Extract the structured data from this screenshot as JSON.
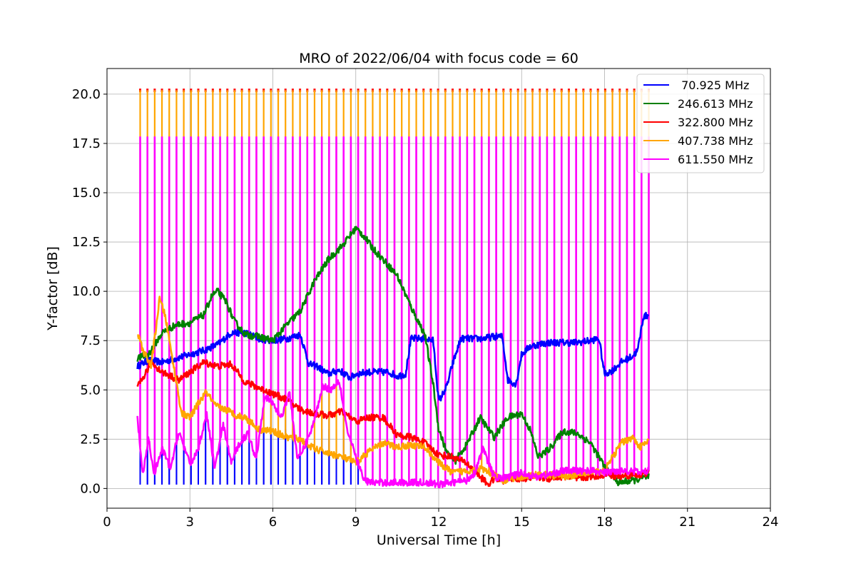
{
  "chart_data": {
    "type": "line",
    "title": "MRO of 2022/06/04 with focus code = 60",
    "xlabel": "Universal Time [h]",
    "ylabel": "Y-factor [dB]",
    "xlim": [
      0,
      24
    ],
    "ylim": [
      -1.0,
      21.3
    ],
    "xticks": [
      0,
      3,
      6,
      9,
      12,
      15,
      18,
      21,
      24
    ],
    "yticks": [
      0.0,
      2.5,
      5.0,
      7.5,
      10.0,
      12.5,
      15.0,
      17.5,
      20.0
    ],
    "xtick_labels": [
      "0",
      "3",
      "6",
      "9",
      "12",
      "15",
      "18",
      "21",
      "24"
    ],
    "ytick_labels": [
      "0.0",
      "2.5",
      "5.0",
      "7.5",
      "10.0",
      "12.5",
      "15.0",
      "17.5",
      "20.0"
    ],
    "grid": true,
    "legend_position": "top-right",
    "calibration_spikes": {
      "start_hour": 1.2,
      "end_hour": 19.6,
      "count": 71,
      "orange_red_peak": 20.2,
      "magenta_peak": 17.85,
      "blue_peak_before_9h": 3.0
    },
    "series": [
      {
        "name": " 70.925 MHz",
        "color": "#0000ff",
        "x": [
          1.1,
          1.5,
          2.0,
          2.5,
          3.0,
          3.5,
          4.0,
          4.5,
          5.0,
          5.5,
          6.0,
          6.5,
          7.0,
          7.3,
          7.6,
          8.0,
          8.4,
          8.8,
          9.0,
          9.4,
          9.8,
          10.2,
          10.5,
          10.8,
          11.0,
          11.5,
          11.8,
          12.0,
          12.3,
          12.5,
          12.8,
          13.2,
          13.6,
          14.0,
          14.3,
          14.5,
          14.8,
          15.0,
          15.3,
          15.6,
          16.0,
          16.5,
          17.0,
          17.5,
          17.8,
          18.0,
          18.3,
          18.6,
          19.0,
          19.2,
          19.4,
          19.6
        ],
        "y": [
          6.2,
          6.5,
          6.4,
          6.6,
          6.8,
          7.0,
          7.3,
          7.9,
          7.9,
          7.6,
          7.5,
          7.6,
          7.8,
          6.3,
          6.2,
          5.8,
          6.0,
          5.6,
          5.8,
          5.9,
          5.9,
          5.9,
          5.7,
          5.8,
          7.6,
          7.6,
          7.5,
          4.4,
          5.2,
          6.3,
          7.6,
          7.6,
          7.6,
          7.7,
          7.7,
          5.5,
          5.3,
          6.8,
          7.2,
          7.3,
          7.4,
          7.4,
          7.4,
          7.5,
          7.6,
          5.8,
          6.0,
          6.4,
          6.7,
          7.0,
          8.7,
          8.8
        ]
      },
      {
        "name": "246.613 MHz",
        "color": "#008000",
        "x": [
          1.1,
          1.5,
          2.0,
          2.5,
          3.0,
          3.5,
          3.8,
          4.0,
          4.3,
          4.6,
          5.0,
          5.5,
          6.0,
          6.5,
          7.0,
          7.5,
          8.0,
          8.5,
          9.0,
          9.3,
          9.6,
          10.0,
          10.5,
          11.0,
          11.5,
          11.8,
          12.0,
          12.3,
          12.6,
          13.0,
          13.5,
          14.0,
          14.5,
          15.0,
          15.3,
          15.6,
          16.0,
          16.5,
          17.0,
          17.5,
          18.0,
          18.5,
          19.0,
          19.3,
          19.6
        ],
        "y": [
          6.6,
          6.8,
          7.9,
          8.3,
          8.4,
          8.8,
          9.8,
          10.0,
          9.5,
          8.5,
          7.8,
          7.7,
          7.5,
          8.3,
          9.0,
          10.5,
          11.6,
          12.3,
          13.2,
          12.8,
          12.2,
          11.6,
          10.8,
          9.2,
          7.8,
          5.3,
          3.0,
          1.8,
          1.4,
          2.2,
          3.6,
          2.6,
          3.6,
          3.8,
          3.0,
          1.6,
          2.0,
          2.9,
          2.8,
          2.3,
          1.1,
          0.3,
          0.4,
          0.5,
          0.6
        ]
      },
      {
        "name": "322.800 MHz",
        "color": "#ff0000",
        "x": [
          1.1,
          1.3,
          1.6,
          2.0,
          2.3,
          2.6,
          3.0,
          3.5,
          4.0,
          4.5,
          5.0,
          5.5,
          6.0,
          6.5,
          7.0,
          7.5,
          8.0,
          8.5,
          9.0,
          9.5,
          10.0,
          10.5,
          11.0,
          11.5,
          12.0,
          12.5,
          13.0,
          13.5,
          13.8,
          14.0,
          14.3,
          14.6,
          15.0,
          15.5,
          16.0,
          16.5,
          17.0,
          17.5,
          18.0,
          18.5,
          19.0,
          19.3,
          19.6
        ],
        "y": [
          5.1,
          5.6,
          6.4,
          5.9,
          5.7,
          5.5,
          5.9,
          6.4,
          6.2,
          6.3,
          5.4,
          5.1,
          4.8,
          4.5,
          4.0,
          3.8,
          3.7,
          3.9,
          3.4,
          3.6,
          3.6,
          2.7,
          2.6,
          2.3,
          1.7,
          1.6,
          1.3,
          0.6,
          0.2,
          0.5,
          0.4,
          0.5,
          0.5,
          0.6,
          0.5,
          0.6,
          0.5,
          0.6,
          0.7,
          0.6,
          0.7,
          0.7,
          0.8
        ]
      },
      {
        "name": "407.738 MHz",
        "color": "#ffa500",
        "x": [
          1.1,
          1.3,
          1.6,
          1.9,
          2.1,
          2.4,
          2.7,
          3.0,
          3.3,
          3.6,
          3.9,
          4.3,
          4.7,
          5.0,
          5.5,
          6.0,
          6.5,
          7.0,
          7.5,
          8.0,
          8.5,
          9.0,
          9.5,
          10.0,
          10.5,
          11.0,
          11.5,
          12.0,
          12.5,
          13.0,
          13.5,
          14.0,
          14.3,
          14.6,
          15.0,
          15.5,
          16.0,
          16.5,
          17.0,
          17.5,
          18.0,
          18.3,
          18.6,
          19.0,
          19.3,
          19.6
        ],
        "y": [
          7.9,
          7.0,
          6.2,
          9.6,
          8.8,
          6.3,
          3.8,
          3.6,
          4.3,
          4.9,
          4.2,
          4.0,
          3.7,
          3.6,
          3.0,
          2.9,
          2.6,
          2.5,
          2.0,
          1.8,
          1.6,
          1.3,
          1.9,
          2.3,
          2.1,
          2.2,
          2.1,
          1.3,
          0.8,
          0.9,
          1.0,
          0.7,
          0.4,
          0.5,
          0.6,
          0.7,
          0.7,
          0.6,
          0.7,
          0.8,
          0.9,
          1.6,
          2.3,
          2.6,
          2.1,
          2.4
        ]
      },
      {
        "name": "611.550 MHz",
        "color": "#ff00ff",
        "x": [
          1.1,
          1.3,
          1.5,
          1.7,
          2.0,
          2.3,
          2.6,
          3.0,
          3.3,
          3.6,
          3.9,
          4.2,
          4.5,
          4.8,
          5.1,
          5.4,
          5.7,
          6.0,
          6.3,
          6.6,
          6.9,
          7.2,
          7.5,
          7.8,
          8.1,
          8.4,
          8.7,
          9.0,
          9.3,
          9.6,
          10.0,
          10.5,
          11.0,
          11.5,
          12.0,
          12.5,
          13.0,
          13.3,
          13.6,
          14.0,
          14.3,
          14.6,
          15.0,
          15.5,
          16.0,
          16.5,
          17.0,
          17.5,
          18.0,
          18.5,
          19.0,
          19.3,
          19.6
        ],
        "y": [
          3.6,
          0.6,
          2.6,
          0.7,
          2.0,
          1.0,
          2.9,
          1.2,
          2.0,
          3.8,
          1.0,
          3.2,
          1.3,
          2.3,
          2.8,
          1.5,
          4.7,
          4.3,
          3.6,
          4.9,
          1.4,
          2.3,
          3.4,
          5.2,
          5.0,
          5.5,
          2.9,
          1.6,
          0.4,
          0.3,
          0.3,
          0.3,
          0.3,
          0.3,
          0.2,
          0.3,
          0.4,
          0.8,
          2.0,
          0.6,
          0.5,
          0.6,
          0.8,
          0.6,
          0.7,
          0.9,
          0.9,
          0.9,
          0.8,
          0.9,
          0.9,
          0.8,
          0.9
        ]
      }
    ]
  }
}
